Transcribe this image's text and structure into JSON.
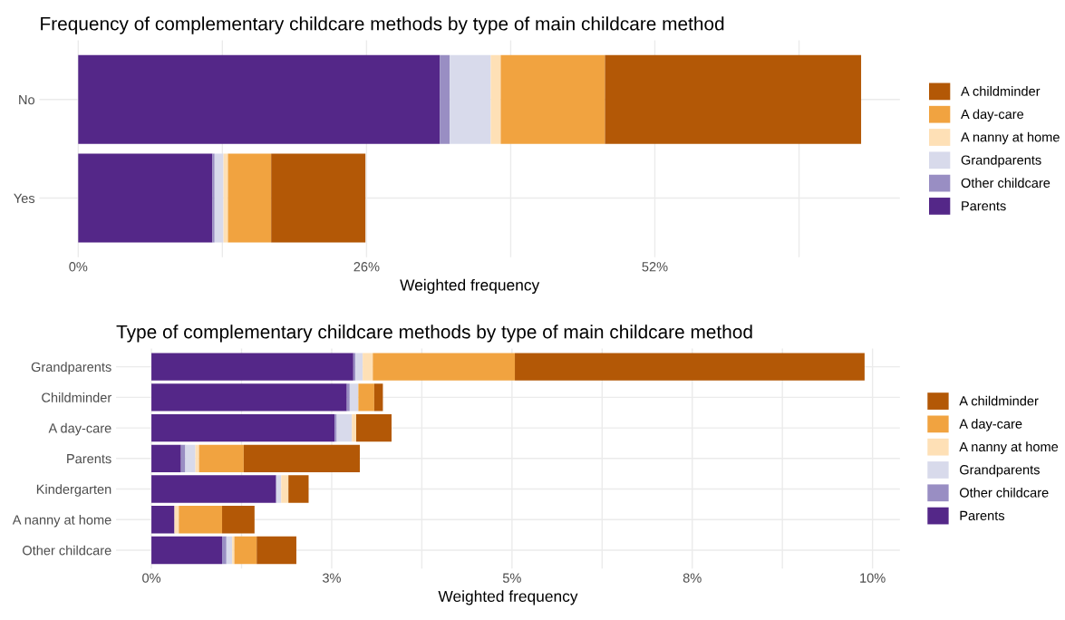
{
  "chart_data": [
    {
      "type": "bar",
      "orientation": "horizontal",
      "stacked": true,
      "title": "Frequency of complementary childcare methods by type of main childcare method",
      "xlabel": "Weighted frequency",
      "categories": [
        "No",
        "Yes"
      ],
      "series": [
        {
          "name": "Parents",
          "color": "#542788",
          "values": [
            32.6,
            12.1
          ]
        },
        {
          "name": "Other childcare",
          "color": "#998ec3",
          "values": [
            0.9,
            0.2
          ]
        },
        {
          "name": "Grandparents",
          "color": "#d8daeb",
          "values": [
            3.7,
            0.8
          ]
        },
        {
          "name": "A nanny at home",
          "color": "#fee0b6",
          "values": [
            0.9,
            0.4
          ]
        },
        {
          "name": "A day-care",
          "color": "#f1a340",
          "values": [
            9.4,
            3.9
          ]
        },
        {
          "name": "A childminder",
          "color": "#b35806",
          "values": [
            23.1,
            8.5
          ]
        }
      ],
      "xlim": [
        -3.5,
        74.1
      ],
      "xticks": [
        {
          "value": 0,
          "label": "0%"
        },
        {
          "value": 13,
          "label": null
        },
        {
          "value": 26,
          "label": "26%"
        },
        {
          "value": 39,
          "label": null
        },
        {
          "value": 52,
          "label": "52%"
        },
        {
          "value": 65,
          "label": null
        }
      ],
      "grid": true,
      "legend": "right"
    },
    {
      "type": "bar",
      "orientation": "horizontal",
      "stacked": true,
      "title": "Type of complementary childcare methods by type of main childcare method",
      "xlabel": "Weighted frequency",
      "categories": [
        "Grandparents",
        "Childminder",
        "A day-care",
        "Parents",
        "Kindergarten",
        "A nanny at home",
        "Other childcare"
      ],
      "series": [
        {
          "name": "Parents",
          "color": "#542788",
          "values": [
            2.8,
            2.71,
            2.54,
            0.41,
            1.73,
            0.32,
            0.98
          ]
        },
        {
          "name": "Other childcare",
          "color": "#998ec3",
          "values": [
            0.03,
            0.04,
            0.03,
            0.06,
            null,
            0,
            0.06
          ]
        },
        {
          "name": "Grandparents",
          "color": "#d8daeb",
          "values": [
            0.1,
            0.12,
            0.21,
            0.14,
            0.07,
            0,
            0.08
          ]
        },
        {
          "name": "A nanny at home",
          "color": "#fee0b6",
          "values": [
            0.14,
            0,
            0.06,
            0.05,
            0.1,
            0.06,
            0.03
          ]
        },
        {
          "name": "A day-care",
          "color": "#f1a340",
          "values": [
            1.97,
            0.22,
            0,
            0.62,
            0,
            0.6,
            0.31
          ]
        },
        {
          "name": "A childminder",
          "color": "#b35806",
          "values": [
            4.85,
            0.12,
            0.49,
            1.61,
            0.28,
            0.45,
            0.55
          ]
        }
      ],
      "xlim": [
        -0.49,
        10.38
      ],
      "xticks": [
        {
          "value": 0,
          "label": "0%"
        },
        {
          "value": 1.25,
          "label": null
        },
        {
          "value": 2.5,
          "label": "3%"
        },
        {
          "value": 3.75,
          "label": null
        },
        {
          "value": 5,
          "label": "5%"
        },
        {
          "value": 6.25,
          "label": null
        },
        {
          "value": 7.5,
          "label": "8%"
        },
        {
          "value": 8.75,
          "label": null
        },
        {
          "value": 10,
          "label": "10%"
        }
      ],
      "grid": true,
      "legend": "right"
    }
  ]
}
